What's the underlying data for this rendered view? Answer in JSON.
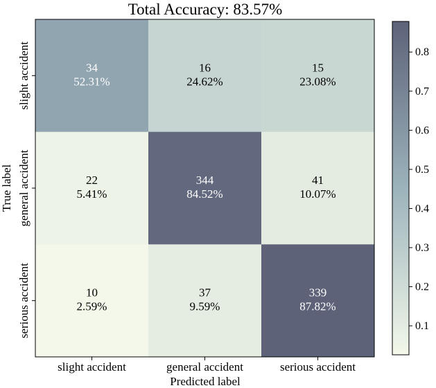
{
  "chart_data": {
    "type": "heatmap",
    "title": "Total Accuracy: 83.57%",
    "xlabel": "Predicted label",
    "ylabel": "True label",
    "x_categories": [
      "slight accident",
      "general accident",
      "serious accident"
    ],
    "y_categories": [
      "slight accident",
      "general accident",
      "serious accident"
    ],
    "counts": [
      [
        34,
        16,
        15
      ],
      [
        22,
        344,
        41
      ],
      [
        10,
        37,
        339
      ]
    ],
    "percent_labels": [
      [
        "52.31%",
        "24.62%",
        "23.08%"
      ],
      [
        "5.41%",
        "84.52%",
        "10.07%"
      ],
      [
        "2.59%",
        "9.59%",
        "87.82%"
      ]
    ],
    "values": [
      [
        0.5231,
        0.2462,
        0.2308
      ],
      [
        0.0541,
        0.8452,
        0.1007
      ],
      [
        0.0259,
        0.0959,
        0.8782
      ]
    ],
    "colorbar": {
      "min": 0.0259,
      "max": 0.8782,
      "ticks": [
        0.1,
        0.2,
        0.3,
        0.4,
        0.5,
        0.6,
        0.7,
        0.8
      ],
      "tick_labels": [
        "0.1",
        "0.2",
        "0.3",
        "0.4",
        "0.5",
        "0.6",
        "0.7",
        "0.8"
      ],
      "color_low": "#f3f8ea",
      "color_mid": "#9cb3bb",
      "color_high": "#5d6279"
    },
    "text_color_dark": "#000000",
    "text_color_light": "#ffffff"
  }
}
